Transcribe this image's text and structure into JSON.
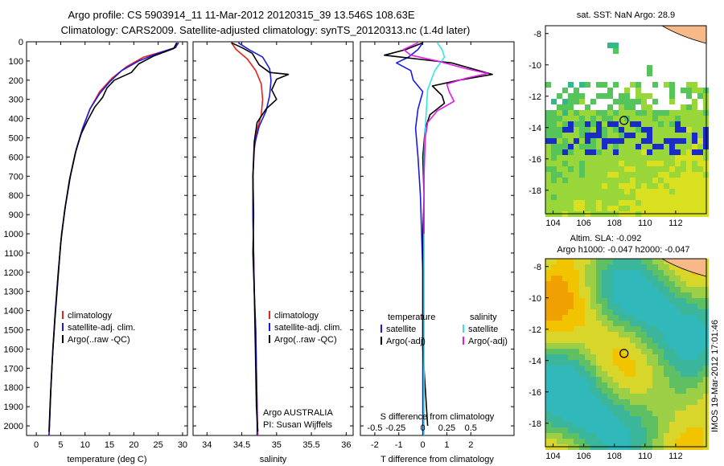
{
  "title": {
    "line1": "Argo profile: CS 5903914_11 11-Mar-2012 20120315_39 13.546S 108.63E",
    "line2": "Climatology: CARS2009. Satellite-adjusted climatology: synTS_20120313.nc (1.4d later)"
  },
  "side_text": "IMOS 19-Mar-2012 17:01:46",
  "colors": {
    "climatology": "#e8201c",
    "satellite": "#1a1ae6",
    "argo": "#000000",
    "sat_cyan": "#33e6e6",
    "argo_magenta": "#e61ae6"
  },
  "chart_data": [
    {
      "type": "line",
      "xlabel": "temperature (deg C)",
      "ylim": [
        2050,
        0
      ],
      "xlim": [
        -2,
        31
      ],
      "xticks": [
        "0",
        "5",
        "10",
        "15",
        "20",
        "25",
        "30"
      ],
      "xtick_values": [
        0,
        5,
        10,
        15,
        20,
        25,
        30
      ],
      "yticks": [
        "0",
        "100",
        "200",
        "300",
        "400",
        "500",
        "600",
        "700",
        "800",
        "900",
        "1000",
        "1100",
        "1200",
        "1300",
        "1400",
        "1500",
        "1600",
        "1700",
        "1800",
        "1900",
        "2000"
      ],
      "legend": [
        "climatology",
        "satellite-adj. clim.",
        "Argo(..raw -QC)"
      ],
      "series": [
        {
          "name": "climatology",
          "color": "#e8201c",
          "points": [
            [
              29,
              5
            ],
            [
              28.6,
              30
            ],
            [
              26,
              50
            ],
            [
              22,
              80
            ],
            [
              18.5,
              130
            ],
            [
              15.5,
              190
            ],
            [
              13,
              260
            ],
            [
              11,
              350
            ],
            [
              9.5,
              450
            ],
            [
              8.2,
              560
            ],
            [
              7,
              700
            ],
            [
              6,
              850
            ],
            [
              5.2,
              1000
            ],
            [
              4.5,
              1200
            ],
            [
              3.9,
              1400
            ],
            [
              3.4,
              1600
            ],
            [
              3,
              1800
            ],
            [
              2.7,
              2000
            ],
            [
              2.6,
              2050
            ]
          ]
        },
        {
          "name": "satellite-adj. clim.",
          "color": "#1a1ae6",
          "points": [
            [
              29.2,
              5
            ],
            [
              28.5,
              30
            ],
            [
              25,
              60
            ],
            [
              21,
              100
            ],
            [
              17.5,
              150
            ],
            [
              15,
              210
            ],
            [
              13,
              270
            ],
            [
              11,
              350
            ],
            [
              9.5,
              450
            ],
            [
              8.2,
              560
            ],
            [
              7,
              700
            ],
            [
              6,
              850
            ],
            [
              5.2,
              1000
            ],
            [
              4.5,
              1200
            ],
            [
              3.9,
              1400
            ],
            [
              3.4,
              1600
            ],
            [
              3,
              1800
            ],
            [
              2.7,
              2000
            ],
            [
              2.6,
              2050
            ]
          ]
        },
        {
          "name": "Argo(..raw -QC)",
          "color": "#000000",
          "points": [
            [
              28.8,
              5
            ],
            [
              28.2,
              35
            ],
            [
              24,
              75
            ],
            [
              21,
              115
            ],
            [
              19.5,
              160
            ],
            [
              16,
              200
            ],
            [
              14.5,
              240
            ],
            [
              13.6,
              290
            ],
            [
              12,
              340
            ],
            [
              10.5,
              410
            ],
            [
              9.2,
              480
            ],
            [
              8,
              580
            ],
            [
              6.8,
              720
            ],
            [
              5.8,
              880
            ],
            [
              5,
              1050
            ],
            [
              4.4,
              1250
            ],
            [
              3.8,
              1450
            ],
            [
              3.3,
              1650
            ],
            [
              2.9,
              1850
            ],
            [
              2.6,
              2030
            ]
          ]
        }
      ]
    },
    {
      "type": "line",
      "xlabel": "salinity",
      "ylim": [
        2050,
        0
      ],
      "xlim": [
        33.8,
        36.1
      ],
      "xticks": [
        "34",
        "34.5",
        "35",
        "35.5",
        "36"
      ],
      "xtick_values": [
        34,
        34.5,
        35,
        35.5,
        36
      ],
      "legend": [
        "climatology",
        "satellite-adj. clim.",
        "Argo(..raw -QC)"
      ],
      "annotation": [
        "Argo AUSTRALIA",
        "PI: Susan Wijffels"
      ],
      "series": [
        {
          "name": "climatology",
          "color": "#e8201c",
          "points": [
            [
              34.35,
              5
            ],
            [
              34.42,
              40
            ],
            [
              34.58,
              90
            ],
            [
              34.7,
              150
            ],
            [
              34.78,
              220
            ],
            [
              34.8,
              300
            ],
            [
              34.78,
              380
            ],
            [
              34.72,
              460
            ],
            [
              34.68,
              560
            ],
            [
              34.66,
              700
            ],
            [
              34.66,
              900
            ],
            [
              34.67,
              1100
            ],
            [
              34.68,
              1300
            ],
            [
              34.7,
              1500
            ],
            [
              34.71,
              1700
            ],
            [
              34.72,
              1900
            ],
            [
              34.73,
              2050
            ]
          ]
        },
        {
          "name": "satellite-adj. clim.",
          "color": "#1a1ae6",
          "points": [
            [
              34.45,
              5
            ],
            [
              34.6,
              40
            ],
            [
              34.8,
              80
            ],
            [
              34.9,
              140
            ],
            [
              34.92,
              200
            ],
            [
              34.9,
              280
            ],
            [
              34.85,
              360
            ],
            [
              34.75,
              440
            ],
            [
              34.68,
              540
            ],
            [
              34.66,
              700
            ],
            [
              34.66,
              900
            ],
            [
              34.67,
              1100
            ],
            [
              34.68,
              1300
            ],
            [
              34.7,
              1500
            ],
            [
              34.71,
              1700
            ],
            [
              34.72,
              1900
            ],
            [
              34.72,
              2050
            ]
          ]
        },
        {
          "name": "Argo(..raw -QC)",
          "color": "#000000",
          "points": [
            [
              34.35,
              5
            ],
            [
              34.5,
              30
            ],
            [
              34.65,
              60
            ],
            [
              34.75,
              120
            ],
            [
              34.9,
              160
            ],
            [
              35.17,
              170
            ],
            [
              35.0,
              195
            ],
            [
              34.93,
              250
            ],
            [
              35.0,
              300
            ],
            [
              34.85,
              350
            ],
            [
              34.72,
              420
            ],
            [
              34.68,
              520
            ],
            [
              34.66,
              700
            ],
            [
              34.67,
              900
            ],
            [
              34.66,
              1100
            ],
            [
              34.68,
              1300
            ],
            [
              34.69,
              1500
            ],
            [
              34.7,
              1700
            ],
            [
              34.71,
              1900
            ],
            [
              34.73,
              2030
            ]
          ]
        }
      ]
    },
    {
      "type": "line",
      "xlabel": "T difference from climatology",
      "xlabel_top": "S difference from climatology",
      "ylim": [
        2050,
        0
      ],
      "xlim": [
        -2.6,
        3.8
      ],
      "xticks": [
        "-2",
        "-1",
        "0",
        "1",
        "2"
      ],
      "xtick_values": [
        -2,
        -1,
        0,
        1,
        2
      ],
      "xticks_top": [
        "-0.5",
        "-0.25",
        "0",
        "0.25",
        "0.5"
      ],
      "xtick_top_values": [
        -2,
        -1,
        0,
        1,
        2
      ],
      "legend_temperature": {
        "heading": "temperature",
        "items": [
          "satellite",
          "Argo(-adj)"
        ]
      },
      "legend_salinity": {
        "heading": "salinity",
        "items": [
          "satellite",
          "Argo(-adj)"
        ]
      },
      "series": [
        {
          "name": "satellite",
          "color": "#1a1ae6",
          "points": [
            [
              0,
              5
            ],
            [
              -0.2,
              40
            ],
            [
              -0.6,
              80
            ],
            [
              -1.1,
              110
            ],
            [
              -0.5,
              150
            ],
            [
              -0.4,
              200
            ],
            [
              0,
              260
            ],
            [
              -0.2,
              350
            ],
            [
              -0.3,
              450
            ],
            [
              -0.2,
              600
            ],
            [
              -0.1,
              800
            ],
            [
              -0.05,
              1000
            ],
            [
              0,
              1200
            ],
            [
              0,
              1500
            ],
            [
              0,
              1800
            ],
            [
              0,
              2050
            ]
          ]
        },
        {
          "name": "Argo(-adj)",
          "color": "#000000",
          "points": [
            [
              0,
              5
            ],
            [
              -0.7,
              40
            ],
            [
              -1.6,
              70
            ],
            [
              -0.2,
              90
            ],
            [
              1.2,
              110
            ],
            [
              2.9,
              170
            ],
            [
              1.5,
              200
            ],
            [
              0.4,
              230
            ],
            [
              0.8,
              280
            ],
            [
              0.9,
              320
            ],
            [
              0.3,
              380
            ],
            [
              0.1,
              450
            ],
            [
              0,
              600
            ],
            [
              0.05,
              800
            ],
            [
              0,
              1000
            ],
            [
              0,
              1300
            ],
            [
              0,
              1600
            ],
            [
              0.1,
              1800
            ],
            [
              0.2,
              2000
            ]
          ]
        },
        {
          "name": "satellite",
          "color": "#33e6e6",
          "points": [
            [
              0.6,
              5
            ],
            [
              0.8,
              40
            ],
            [
              0.9,
              80
            ],
            [
              0.5,
              150
            ],
            [
              0.2,
              250
            ],
            [
              0.15,
              350
            ],
            [
              0.1,
              450
            ],
            [
              0.05,
              600
            ],
            [
              0.05,
              800
            ],
            [
              0.05,
              1000
            ],
            [
              0.05,
              1200
            ],
            [
              0.05,
              1500
            ],
            [
              0.05,
              1800
            ],
            [
              0.05,
              2050
            ]
          ]
        },
        {
          "name": "Argo(-adj)",
          "color": "#e61ae6",
          "points": [
            [
              -0.2,
              5
            ],
            [
              -0.8,
              40
            ],
            [
              -0.5,
              70
            ],
            [
              0.6,
              100
            ],
            [
              1.8,
              140
            ],
            [
              2.7,
              165
            ],
            [
              1.8,
              190
            ],
            [
              1.0,
              220
            ],
            [
              1.1,
              260
            ],
            [
              1.3,
              310
            ],
            [
              0.6,
              360
            ],
            [
              0.2,
              420
            ],
            [
              0.1,
              500
            ],
            [
              0.05,
              700
            ],
            [
              0.05,
              1000
            ]
          ]
        }
      ]
    },
    {
      "type": "heatmap",
      "title": "sat. SST: NaN Argo: 28.9",
      "xlim": [
        103.5,
        114
      ],
      "ylim": [
        -19.5,
        -7.5
      ],
      "xticks": [
        "104",
        "106",
        "108",
        "110",
        "112"
      ],
      "xtick_values": [
        104,
        106,
        108,
        110,
        112
      ],
      "yticks": [
        "-8",
        "-10",
        "-12",
        "-14",
        "-16",
        "-18"
      ],
      "ytick_values": [
        -8,
        -10,
        -12,
        -14,
        -16,
        -18
      ],
      "argo_position": [
        108.63,
        -13.546
      ]
    },
    {
      "type": "heatmap",
      "title": "Altim. SLA: -0.092",
      "subtitle": "Argo h1000: -0.047 h2000: -0.047",
      "xlim": [
        103.5,
        114
      ],
      "ylim": [
        -19.5,
        -7.5
      ],
      "xticks": [
        "104",
        "106",
        "108",
        "110",
        "112"
      ],
      "xtick_values": [
        104,
        106,
        108,
        110,
        112
      ],
      "yticks": [
        "-8",
        "-10",
        "-12",
        "-14",
        "-16",
        "-18"
      ],
      "ytick_values": [
        -8,
        -10,
        -12,
        -14,
        -16,
        -18
      ],
      "argo_position": [
        108.63,
        -13.546
      ]
    }
  ]
}
